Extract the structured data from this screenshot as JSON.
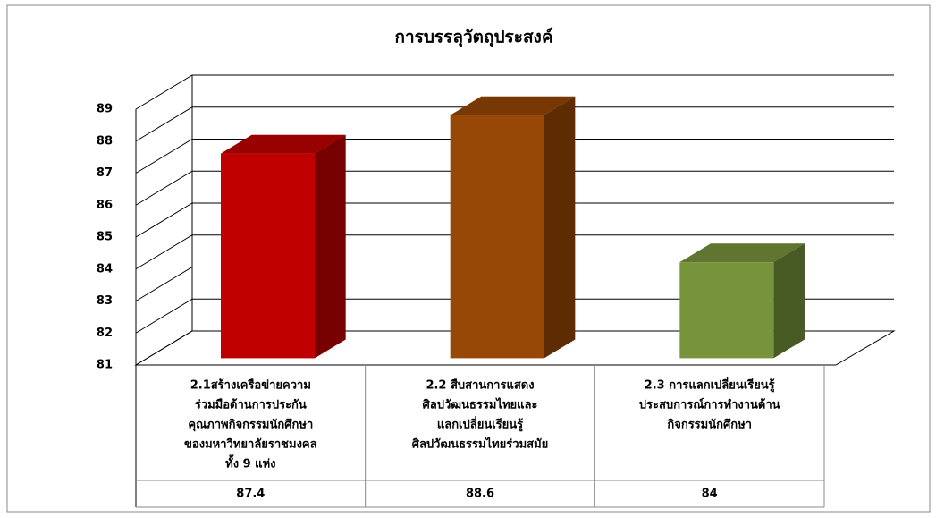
{
  "chart_data": {
    "type": "bar3d",
    "title": "การบรรลุวัตถุประสงค์",
    "categories": [
      [
        "2.1สร้างเครือข่ายความ",
        "ร่วมมือด้านการประกัน",
        "คุณภาพกิจกรรมนักศึกษา",
        "ของมหาวิทยาลัยราชมงคล",
        "ทั้ง 9 แห่ง"
      ],
      [
        "2.2 สืบสานการแสดง",
        "ศิลปวัฒนธรรมไทยและ",
        "แลกเปลี่ยนเรียนรู้",
        "ศิลปวัฒนธรรมไทยร่วมสมัย"
      ],
      [
        "2.3 การแลกเปลี่ยนเรียนรู้",
        "ประสบการณ์การทำงานด้าน",
        "กิจกรรมนักศึกษา"
      ]
    ],
    "values": [
      87.4,
      88.6,
      84
    ],
    "colors": [
      "#c00000",
      "#974706",
      "#77933c"
    ],
    "ylim": [
      81,
      89
    ],
    "yticks": [
      81,
      82,
      83,
      84,
      85,
      86,
      87,
      88,
      89
    ],
    "grid": true
  }
}
